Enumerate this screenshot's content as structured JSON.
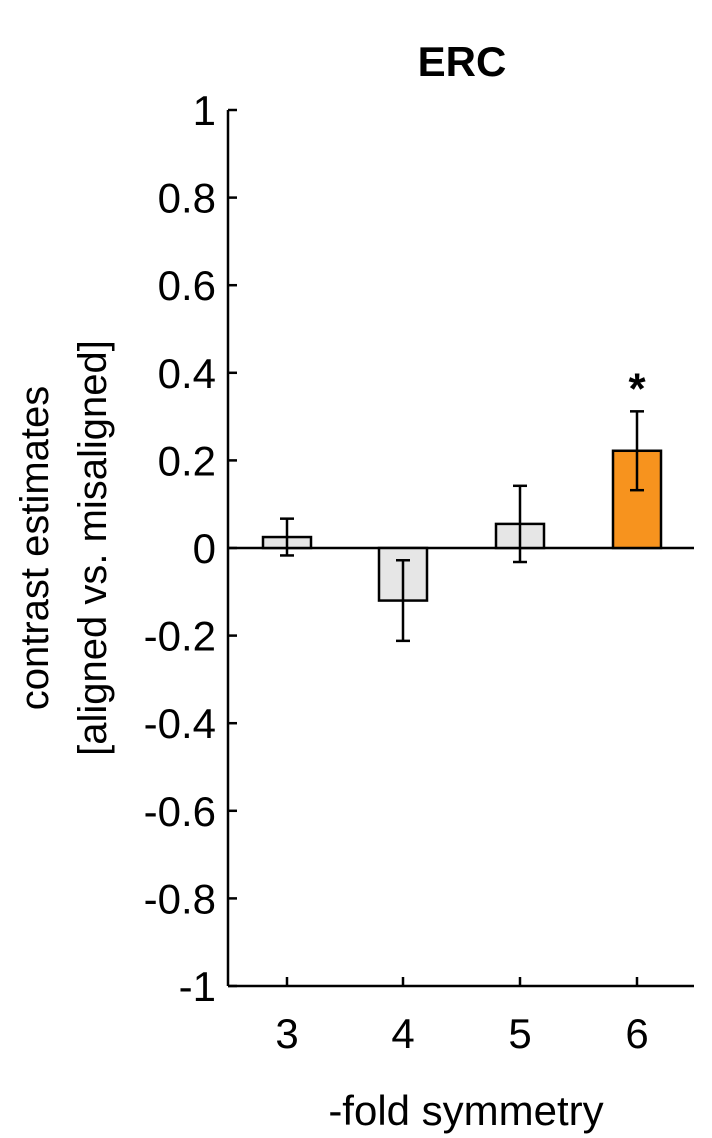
{
  "chart_data": {
    "type": "bar",
    "title": "ERC",
    "xlabel": "-fold symmetry",
    "ylabel_line1": "contrast estimates",
    "ylabel_line2": "[aligned vs. misaligned]",
    "categories": [
      "3",
      "4",
      "5",
      "6"
    ],
    "values": [
      0.025,
      -0.12,
      0.055,
      0.222
    ],
    "errors": [
      0.042,
      0.092,
      0.087,
      0.09
    ],
    "significance": [
      "",
      "",
      "",
      "*"
    ],
    "colors": [
      "#e6e6e6",
      "#e6e6e6",
      "#e6e6e6",
      "#f7931e"
    ],
    "ylim": [
      -1,
      1
    ],
    "yticks": [
      "1",
      "0.8",
      "0.6",
      "0.4",
      "0.2",
      "0",
      "-0.2",
      "-0.4",
      "-0.6",
      "-0.8",
      "-1"
    ],
    "grid": false,
    "legend": "none"
  }
}
